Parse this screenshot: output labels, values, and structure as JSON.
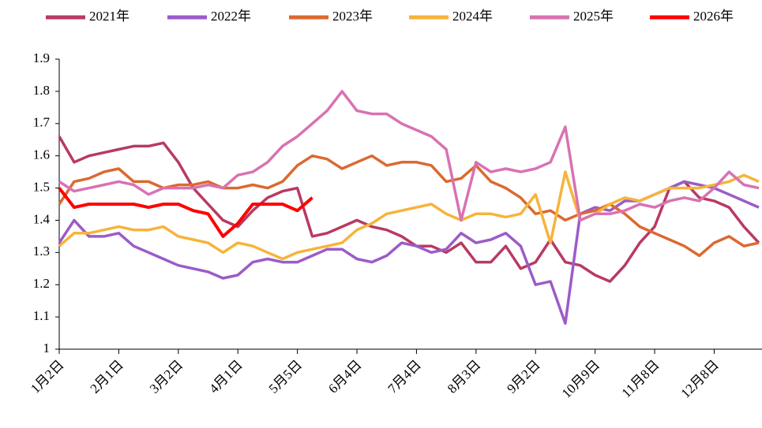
{
  "chart_data": {
    "type": "line",
    "categories": [
      "1月2日",
      null,
      null,
      null,
      "2月1日",
      null,
      null,
      null,
      "3月2日",
      null,
      null,
      null,
      "4月1日",
      null,
      null,
      null,
      "5月5日",
      null,
      null,
      null,
      "6月4日",
      null,
      null,
      null,
      "7月4日",
      null,
      null,
      null,
      "8月3日",
      null,
      null,
      null,
      "9月2日",
      null,
      null,
      null,
      "10月9日",
      null,
      null,
      null,
      "11月8日",
      null,
      null,
      null,
      "12月8日",
      null,
      null,
      null
    ],
    "ylim": [
      1,
      1.9
    ],
    "yticks": [
      1,
      1.1,
      1.2,
      1.3,
      1.4,
      1.5,
      1.6,
      1.7,
      1.8,
      1.9
    ],
    "legend": "top",
    "series": [
      {
        "name": "2021年",
        "color": "#b83a62",
        "values": [
          1.66,
          1.58,
          1.6,
          1.61,
          1.62,
          1.63,
          1.63,
          1.64,
          1.58,
          1.5,
          1.45,
          1.4,
          1.38,
          1.43,
          1.47,
          1.49,
          1.5,
          1.35,
          1.36,
          1.38,
          1.4,
          1.38,
          1.37,
          1.35,
          1.32,
          1.32,
          1.3,
          1.33,
          1.27,
          1.27,
          1.32,
          1.25,
          1.27,
          1.34,
          1.27,
          1.26,
          1.23,
          1.21,
          1.26,
          1.33,
          1.38,
          1.5,
          1.52,
          1.47,
          1.46,
          1.44,
          1.38,
          1.33
        ]
      },
      {
        "name": "2022年",
        "color": "#9b5cc8",
        "values": [
          1.33,
          1.4,
          1.35,
          1.35,
          1.36,
          1.32,
          1.3,
          1.28,
          1.26,
          1.25,
          1.24,
          1.22,
          1.23,
          1.27,
          1.28,
          1.27,
          1.27,
          1.29,
          1.31,
          1.31,
          1.28,
          1.27,
          1.29,
          1.33,
          1.32,
          1.3,
          1.31,
          1.36,
          1.33,
          1.34,
          1.36,
          1.32,
          1.2,
          1.21,
          1.08,
          1.42,
          1.44,
          1.43,
          1.46,
          1.46,
          1.48,
          1.5,
          1.52,
          1.51,
          1.5,
          1.48,
          1.46,
          1.44
        ]
      },
      {
        "name": "2023年",
        "color": "#da6a30",
        "values": [
          1.45,
          1.52,
          1.53,
          1.55,
          1.56,
          1.52,
          1.52,
          1.5,
          1.51,
          1.51,
          1.52,
          1.5,
          1.5,
          1.51,
          1.5,
          1.52,
          1.57,
          1.6,
          1.59,
          1.56,
          1.58,
          1.6,
          1.57,
          1.58,
          1.58,
          1.57,
          1.52,
          1.53,
          1.57,
          1.52,
          1.5,
          1.47,
          1.42,
          1.43,
          1.4,
          1.42,
          1.43,
          1.45,
          1.42,
          1.38,
          1.36,
          1.34,
          1.32,
          1.29,
          1.33,
          1.35,
          1.32,
          1.33
        ]
      },
      {
        "name": "2024年",
        "color": "#f6b43a",
        "values": [
          1.32,
          1.36,
          1.36,
          1.37,
          1.38,
          1.37,
          1.37,
          1.38,
          1.35,
          1.34,
          1.33,
          1.3,
          1.33,
          1.32,
          1.3,
          1.28,
          1.3,
          1.31,
          1.32,
          1.33,
          1.37,
          1.39,
          1.42,
          1.43,
          1.44,
          1.45,
          1.42,
          1.4,
          1.42,
          1.42,
          1.41,
          1.42,
          1.48,
          1.33,
          1.55,
          1.4,
          1.42,
          1.45,
          1.47,
          1.46,
          1.48,
          1.5,
          1.5,
          1.5,
          1.51,
          1.52,
          1.54,
          1.52
        ]
      },
      {
        "name": "2025年",
        "color": "#d872b3",
        "values": [
          1.52,
          1.49,
          1.5,
          1.51,
          1.52,
          1.51,
          1.48,
          1.5,
          1.5,
          1.5,
          1.51,
          1.5,
          1.54,
          1.55,
          1.58,
          1.63,
          1.66,
          1.7,
          1.74,
          1.8,
          1.74,
          1.73,
          1.73,
          1.7,
          1.68,
          1.66,
          1.62,
          1.4,
          1.58,
          1.55,
          1.56,
          1.55,
          1.56,
          1.58,
          1.69,
          1.4,
          1.42,
          1.42,
          1.43,
          1.45,
          1.44,
          1.46,
          1.47,
          1.46,
          1.5,
          1.55,
          1.51,
          1.5
        ]
      },
      {
        "name": "2026年",
        "color": "#ff0000",
        "values": [
          1.5,
          1.44,
          1.45,
          1.45,
          1.45,
          1.45,
          1.44,
          1.45,
          1.45,
          1.43,
          1.42,
          1.35,
          1.39,
          1.45,
          1.45,
          1.45,
          1.43,
          1.47,
          null,
          null,
          null,
          null,
          null,
          null,
          null,
          null,
          null,
          null,
          null,
          null,
          null,
          null,
          null,
          null,
          null,
          null,
          null,
          null,
          null,
          null,
          null,
          null,
          null,
          null,
          null,
          null,
          null,
          null
        ]
      }
    ]
  }
}
